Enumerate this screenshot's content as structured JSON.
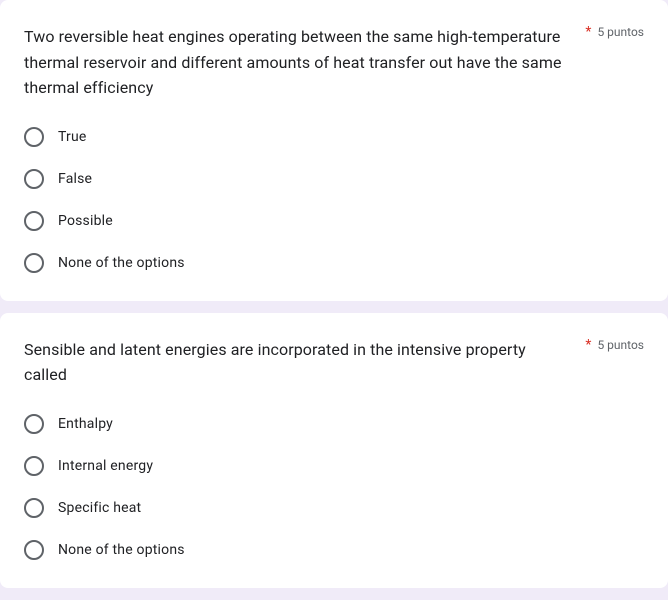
{
  "questions": [
    {
      "text": "Two reversible heat engines operating between the same high-temperature thermal reservoir and different amounts of heat transfer out have the same thermal efficiency",
      "requiredStar": "*",
      "points": "5 puntos",
      "options": [
        {
          "label": "True"
        },
        {
          "label": "False"
        },
        {
          "label": "Possible"
        },
        {
          "label": "None of the options"
        }
      ]
    },
    {
      "text": "Sensible and latent energies are incorporated in the intensive property called",
      "requiredStar": "*",
      "points": "5 puntos",
      "options": [
        {
          "label": "Enthalpy"
        },
        {
          "label": "Internal energy"
        },
        {
          "label": "Specific heat"
        },
        {
          "label": "None of the options"
        }
      ]
    }
  ]
}
